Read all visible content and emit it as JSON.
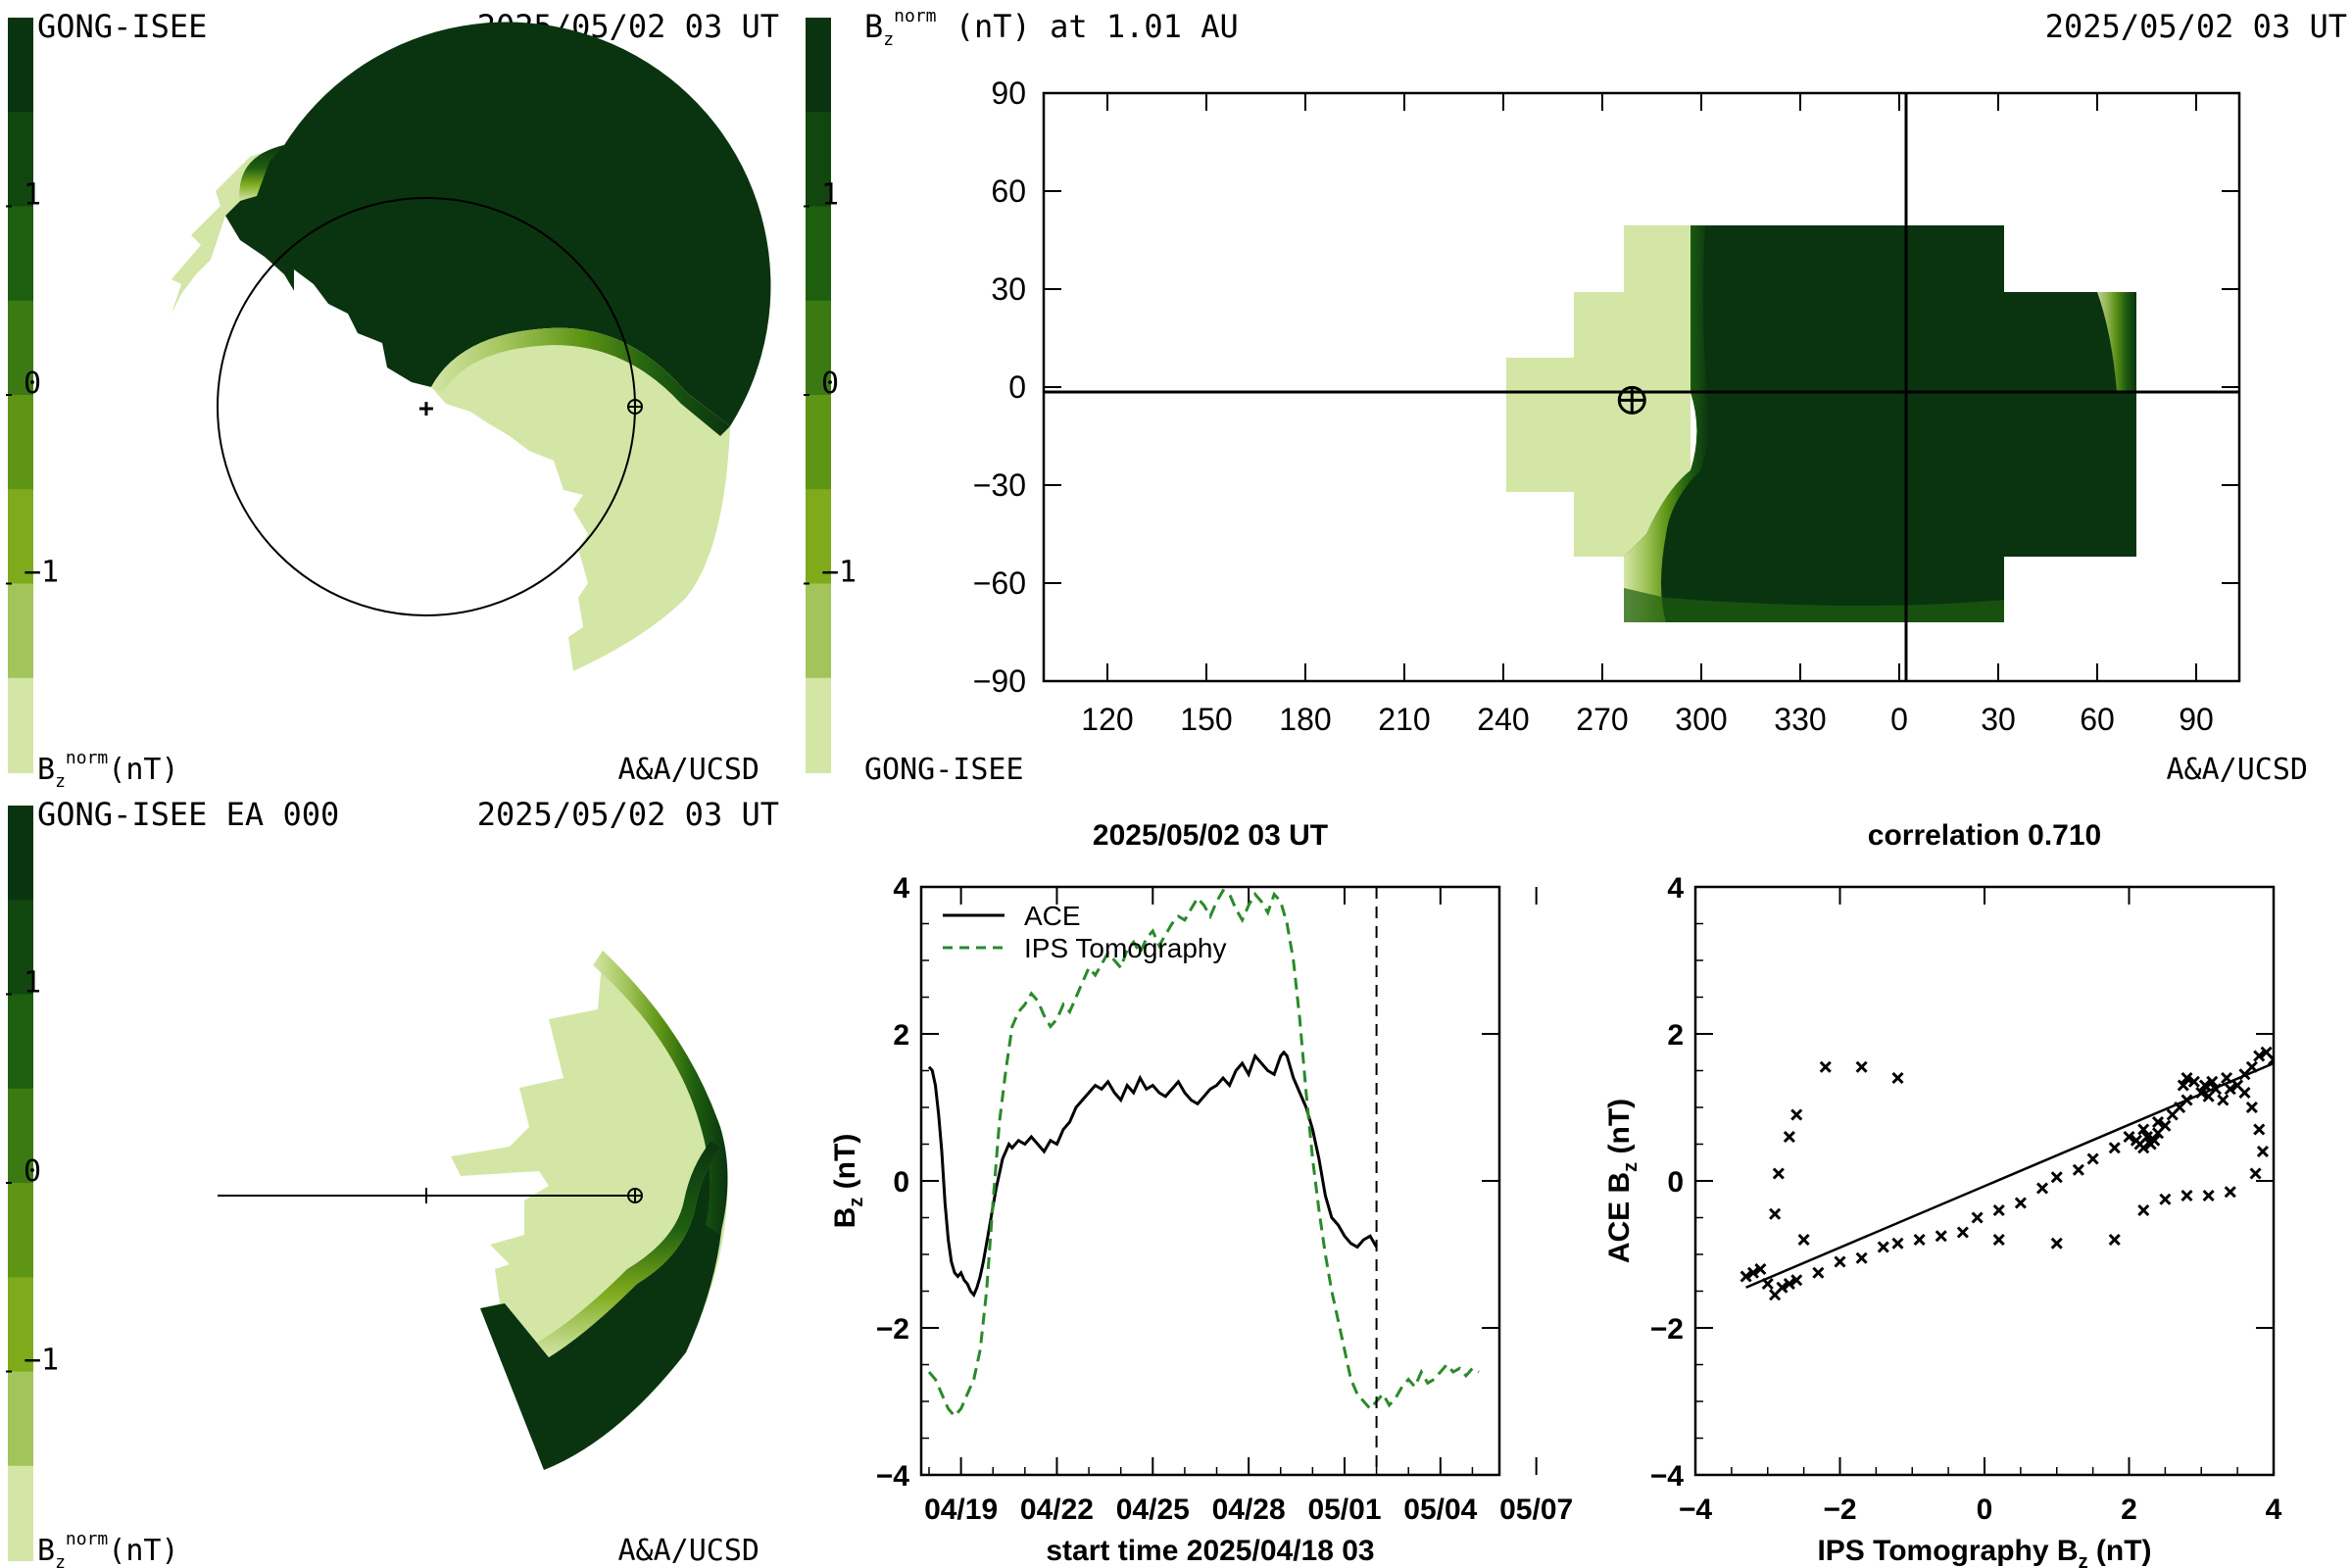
{
  "panels": {
    "top_left": {
      "source": "GONG-ISEE",
      "timestamp": "2025/05/02 03 UT",
      "units": "(nT)",
      "credit": "A&A/UCSD"
    },
    "top_right": {
      "quantity": "(nT) at 1.01 AU",
      "timestamp": "2025/05/02 03 UT",
      "source": "GONG-ISEE",
      "credit": "A&A/UCSD"
    },
    "bottom_left": {
      "source": "GONG-ISEE EA 000",
      "timestamp": "2025/05/02 03 UT",
      "units": "(nT)",
      "credit": "A&A/UCSD"
    }
  },
  "colorbar": {
    "labels": [
      "1",
      "0",
      "−1"
    ],
    "colors": [
      "#0a3410",
      "#11470f",
      "#1e5e0f",
      "#3b7a12",
      "#5e9515",
      "#7eaa1c",
      "#a2c45a",
      "#d3e6a6"
    ]
  },
  "chart_data": [
    {
      "type": "heatmap",
      "name": "synoptic Bz map",
      "x_ticks": [
        "120",
        "150",
        "180",
        "210",
        "240",
        "270",
        "300",
        "330",
        "0",
        "30",
        "60",
        "90"
      ],
      "y_ticks": [
        "90",
        "60",
        "30",
        "0",
        "−30",
        "−60",
        "−90"
      ],
      "earth_position": {
        "carrington_longitude": 279,
        "latitude": -4
      }
    },
    {
      "type": "line",
      "title": "2025/05/02 03 UT",
      "xlabel": "start time 2025/04/18 03",
      "ylabel": "B",
      "ylabel_sub": "z",
      "ylabel_unit": " (nT)",
      "ylim": [
        -4,
        4
      ],
      "y_ticks": [
        "4",
        "2",
        "0",
        "−2",
        "−4"
      ],
      "x_tick_labels": [
        "04/19",
        "04/22",
        "04/25",
        "04/28",
        "05/01",
        "05/04",
        "05/07"
      ],
      "current_time_marker_day": 14.0,
      "series": [
        {
          "name": "ACE",
          "color": "#000000",
          "style": "solid",
          "x_days": [
            0.0,
            0.1,
            0.2,
            0.3,
            0.4,
            0.5,
            0.6,
            0.7,
            0.8,
            0.9,
            1.0,
            1.1,
            1.2,
            1.3,
            1.4,
            1.5,
            1.6,
            1.7,
            1.8,
            1.9,
            2.0,
            2.1,
            2.2,
            2.3,
            2.4,
            2.5,
            2.6,
            2.8,
            3.0,
            3.2,
            3.4,
            3.6,
            3.8,
            4.0,
            4.2,
            4.4,
            4.6,
            4.8,
            5.0,
            5.2,
            5.4,
            5.6,
            5.8,
            6.0,
            6.2,
            6.4,
            6.6,
            6.8,
            7.0,
            7.2,
            7.4,
            7.6,
            7.8,
            8.0,
            8.2,
            8.4,
            8.6,
            8.8,
            9.0,
            9.2,
            9.4,
            9.6,
            9.8,
            10.0,
            10.2,
            10.4,
            10.6,
            10.8,
            11.0,
            11.1,
            11.2,
            11.4,
            11.6,
            11.8,
            12.0,
            12.2,
            12.4,
            12.6,
            12.8,
            13.0,
            13.2,
            13.4,
            13.6,
            13.8,
            14.0
          ],
          "values": [
            1.55,
            1.5,
            1.3,
            0.9,
            0.4,
            -0.3,
            -0.8,
            -1.1,
            -1.25,
            -1.3,
            -1.25,
            -1.35,
            -1.4,
            -1.5,
            -1.55,
            -1.45,
            -1.3,
            -1.1,
            -0.85,
            -0.6,
            -0.35,
            -0.1,
            0.1,
            0.3,
            0.4,
            0.5,
            0.45,
            0.55,
            0.5,
            0.6,
            0.5,
            0.4,
            0.55,
            0.5,
            0.7,
            0.8,
            1.0,
            1.1,
            1.2,
            1.3,
            1.25,
            1.35,
            1.2,
            1.1,
            1.3,
            1.2,
            1.4,
            1.25,
            1.3,
            1.2,
            1.15,
            1.25,
            1.35,
            1.2,
            1.1,
            1.05,
            1.15,
            1.25,
            1.3,
            1.4,
            1.3,
            1.5,
            1.6,
            1.45,
            1.7,
            1.6,
            1.5,
            1.45,
            1.7,
            1.75,
            1.7,
            1.4,
            1.2,
            1.0,
            0.7,
            0.3,
            -0.2,
            -0.5,
            -0.6,
            -0.75,
            -0.85,
            -0.9,
            -0.8,
            -0.75,
            -0.9
          ]
        },
        {
          "name": "IPS Tomography",
          "color": "#2a8a2a",
          "style": "dashed",
          "x_days": [
            0.0,
            0.2,
            0.4,
            0.6,
            0.8,
            1.0,
            1.2,
            1.4,
            1.6,
            1.8,
            2.0,
            2.2,
            2.4,
            2.6,
            2.8,
            3.0,
            3.2,
            3.4,
            3.6,
            3.8,
            4.0,
            4.2,
            4.4,
            4.6,
            4.8,
            5.0,
            5.2,
            5.4,
            5.6,
            5.8,
            6.0,
            6.2,
            6.4,
            6.6,
            6.8,
            7.0,
            7.2,
            7.4,
            7.6,
            7.8,
            8.0,
            8.2,
            8.4,
            8.6,
            8.8,
            9.0,
            9.2,
            9.4,
            9.6,
            9.8,
            10.0,
            10.2,
            10.4,
            10.6,
            10.8,
            11.0,
            11.2,
            11.4,
            11.6,
            11.8,
            12.0,
            12.2,
            12.4,
            12.6,
            12.8,
            13.0,
            13.2,
            13.4,
            13.6,
            13.8,
            14.0,
            14.2,
            14.4,
            14.6,
            14.8,
            15.0,
            15.2,
            15.4,
            15.6,
            15.8,
            16.0,
            16.2,
            16.4,
            16.6,
            16.8,
            17.0,
            17.2
          ],
          "values": [
            -2.6,
            -2.7,
            -2.9,
            -3.1,
            -3.2,
            -3.1,
            -2.9,
            -2.7,
            -2.3,
            -1.5,
            -0.3,
            0.8,
            1.5,
            2.1,
            2.3,
            2.4,
            2.55,
            2.45,
            2.25,
            2.1,
            2.2,
            2.4,
            2.3,
            2.5,
            2.7,
            2.9,
            2.8,
            2.95,
            3.1,
            3.0,
            2.9,
            3.15,
            3.25,
            3.1,
            3.3,
            3.4,
            3.2,
            3.35,
            3.5,
            3.6,
            3.55,
            3.7,
            3.85,
            3.75,
            3.6,
            3.8,
            3.95,
            3.9,
            3.7,
            3.55,
            3.75,
            3.9,
            3.8,
            3.65,
            3.9,
            3.8,
            3.5,
            3.0,
            2.2,
            1.2,
            0.3,
            -0.4,
            -1.0,
            -1.5,
            -1.9,
            -2.3,
            -2.7,
            -2.9,
            -3.0,
            -3.1,
            -3.0,
            -2.9,
            -3.05,
            -2.95,
            -2.8,
            -2.7,
            -2.8,
            -2.6,
            -2.75,
            -2.7,
            -2.6,
            -2.5,
            -2.6,
            -2.55,
            -2.65,
            -2.55,
            -2.6
          ]
        }
      ]
    },
    {
      "type": "scatter",
      "title": "correlation 0.710",
      "xlabel": "IPS Tomography B",
      "xlabel_sub": "z",
      "xlabel_unit": " (nT)",
      "ylabel": "ACE B",
      "ylabel_sub": "z",
      "ylabel_unit": " (nT)",
      "xlim": [
        -4,
        4
      ],
      "ylim": [
        -4,
        4
      ],
      "x_ticks": [
        "−4",
        "−2",
        "0",
        "2",
        "4"
      ],
      "y_ticks": [
        "4",
        "2",
        "0",
        "−2",
        "−4"
      ],
      "fit_line": {
        "x": [
          -3.3,
          4.0
        ],
        "y": [
          -1.45,
          1.6
        ]
      },
      "points": [
        [
          -3.3,
          -1.3
        ],
        [
          -3.2,
          -1.25
        ],
        [
          -3.1,
          -1.2
        ],
        [
          -3.0,
          -1.4
        ],
        [
          -2.9,
          -1.55
        ],
        [
          -2.8,
          -1.45
        ],
        [
          -2.7,
          -1.4
        ],
        [
          -2.6,
          -1.35
        ],
        [
          -2.3,
          -1.25
        ],
        [
          -2.0,
          -1.1
        ],
        [
          -1.7,
          -1.05
        ],
        [
          -1.4,
          -0.9
        ],
        [
          -1.2,
          -0.85
        ],
        [
          -0.9,
          -0.8
        ],
        [
          -0.6,
          -0.75
        ],
        [
          -0.3,
          -0.7
        ],
        [
          -0.1,
          -0.5
        ],
        [
          0.2,
          -0.4
        ],
        [
          0.5,
          -0.3
        ],
        [
          0.8,
          -0.1
        ],
        [
          1.0,
          0.05
        ],
        [
          1.3,
          0.15
        ],
        [
          1.5,
          0.3
        ],
        [
          1.8,
          0.45
        ],
        [
          2.0,
          0.6
        ],
        [
          2.1,
          0.55
        ],
        [
          2.15,
          0.5
        ],
        [
          2.2,
          0.45
        ],
        [
          2.25,
          0.6
        ],
        [
          2.3,
          0.5
        ],
        [
          2.2,
          0.7
        ],
        [
          2.35,
          0.55
        ],
        [
          2.4,
          0.65
        ],
        [
          2.4,
          0.8
        ],
        [
          2.5,
          0.75
        ],
        [
          2.6,
          0.9
        ],
        [
          2.7,
          1.0
        ],
        [
          2.8,
          1.1
        ],
        [
          2.75,
          1.3
        ],
        [
          2.8,
          1.4
        ],
        [
          2.9,
          1.35
        ],
        [
          3.0,
          1.2
        ],
        [
          3.05,
          1.3
        ],
        [
          3.1,
          1.15
        ],
        [
          3.15,
          1.35
        ],
        [
          3.2,
          1.25
        ],
        [
          3.3,
          1.1
        ],
        [
          3.35,
          1.4
        ],
        [
          3.4,
          1.25
        ],
        [
          3.5,
          1.3
        ],
        [
          3.6,
          1.45
        ],
        [
          3.7,
          1.55
        ],
        [
          3.8,
          1.7
        ],
        [
          3.9,
          1.75
        ],
        [
          4.0,
          1.65
        ],
        [
          3.6,
          1.2
        ],
        [
          3.7,
          1.0
        ],
        [
          3.8,
          0.7
        ],
        [
          3.85,
          0.4
        ],
        [
          3.75,
          0.1
        ],
        [
          3.4,
          -0.15
        ],
        [
          3.1,
          -0.2
        ],
        [
          2.8,
          -0.2
        ],
        [
          2.5,
          -0.25
        ],
        [
          2.2,
          -0.4
        ],
        [
          1.8,
          -0.8
        ],
        [
          1.0,
          -0.85
        ],
        [
          0.2,
          -0.8
        ],
        [
          -2.5,
          -0.8
        ],
        [
          -2.9,
          -0.45
        ],
        [
          -2.85,
          0.1
        ],
        [
          -2.7,
          0.6
        ],
        [
          -2.6,
          0.9
        ],
        [
          -2.2,
          1.55
        ],
        [
          -1.7,
          1.55
        ],
        [
          -1.2,
          1.4
        ]
      ]
    }
  ]
}
